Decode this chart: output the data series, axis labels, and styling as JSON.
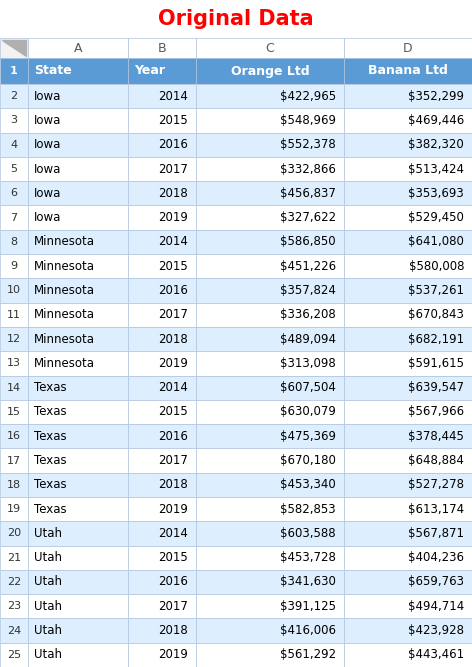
{
  "title": "Original Data",
  "title_color": "#FF0000",
  "col_letters": [
    "A",
    "B",
    "C",
    "D"
  ],
  "headers": [
    "State",
    "Year",
    "Orange Ltd",
    "Banana Ltd"
  ],
  "header_bg": "#5B9BD5",
  "header_text_color": "#FFFFFF",
  "rows": [
    [
      "Iowa",
      "2014",
      "$422,965",
      "$352,299"
    ],
    [
      "Iowa",
      "2015",
      "$548,969",
      "$469,446"
    ],
    [
      "Iowa",
      "2016",
      "$552,378",
      "$382,320"
    ],
    [
      "Iowa",
      "2017",
      "$332,866",
      "$513,424"
    ],
    [
      "Iowa",
      "2018",
      "$456,837",
      "$353,693"
    ],
    [
      "Iowa",
      "2019",
      "$327,622",
      "$529,450"
    ],
    [
      "Minnesota",
      "2014",
      "$586,850",
      "$641,080"
    ],
    [
      "Minnesota",
      "2015",
      "$451,226",
      "$580,008"
    ],
    [
      "Minnesota",
      "2016",
      "$357,824",
      "$537,261"
    ],
    [
      "Minnesota",
      "2017",
      "$336,208",
      "$670,843"
    ],
    [
      "Minnesota",
      "2018",
      "$489,094",
      "$682,191"
    ],
    [
      "Minnesota",
      "2019",
      "$313,098",
      "$591,615"
    ],
    [
      "Texas",
      "2014",
      "$607,504",
      "$639,547"
    ],
    [
      "Texas",
      "2015",
      "$630,079",
      "$567,966"
    ],
    [
      "Texas",
      "2016",
      "$475,369",
      "$378,445"
    ],
    [
      "Texas",
      "2017",
      "$670,180",
      "$648,884"
    ],
    [
      "Texas",
      "2018",
      "$453,340",
      "$527,278"
    ],
    [
      "Texas",
      "2019",
      "$582,853",
      "$613,174"
    ],
    [
      "Utah",
      "2014",
      "$603,588",
      "$567,871"
    ],
    [
      "Utah",
      "2015",
      "$453,728",
      "$404,236"
    ],
    [
      "Utah",
      "2016",
      "$341,630",
      "$659,763"
    ],
    [
      "Utah",
      "2017",
      "$391,125",
      "$494,714"
    ],
    [
      "Utah",
      "2018",
      "$416,006",
      "$423,928"
    ],
    [
      "Utah",
      "2019",
      "$561,292",
      "$443,461"
    ]
  ],
  "row_bg_even": "#DDEEFF",
  "row_bg_odd": "#FFFFFF",
  "grid_color": "#B0C4DE",
  "col_letter_color": "#595959",
  "col_letter_bg": "#FFFFFF",
  "corner_bg": "#F2F2F2",
  "text_color": "#000000"
}
